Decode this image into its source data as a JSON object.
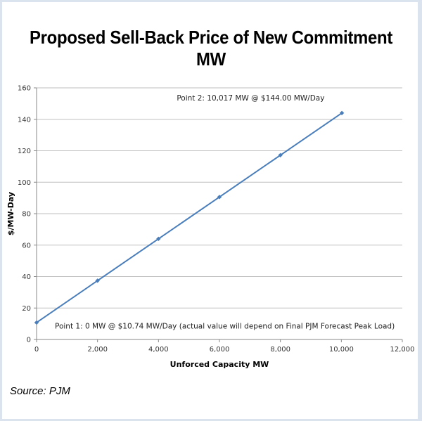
{
  "chart_data": {
    "type": "line",
    "title": "Proposed Sell-Back Price of New Commitment MW",
    "xlabel": "Unforced Capacity MW",
    "ylabel": "$/MW-Day",
    "xlim": [
      0,
      12000
    ],
    "ylim": [
      0,
      160
    ],
    "x_ticks": [
      0,
      2000,
      4000,
      6000,
      8000,
      10000,
      12000
    ],
    "x_tick_labels": [
      "0",
      "2,000",
      "4,000",
      "6,000",
      "8,000",
      "10,000",
      "12,000"
    ],
    "y_ticks": [
      0,
      20,
      40,
      60,
      80,
      100,
      120,
      140,
      160
    ],
    "y_tick_labels": [
      "0",
      "20",
      "40",
      "60",
      "80",
      "100",
      "120",
      "140",
      "160"
    ],
    "grid": "horizontal",
    "series": [
      {
        "name": "Sell-Back Price",
        "color": "#4a7ebb",
        "x": [
          0,
          2000,
          4000,
          6000,
          8000,
          10017
        ],
        "y": [
          10.74,
          37.4,
          64.0,
          90.6,
          117.2,
          144.0
        ]
      }
    ],
    "annotations": [
      {
        "text": "Point 2: 10,017 MW @ $144.00 MW/Day",
        "x": 4600,
        "y": 152
      },
      {
        "text": "Point 1: 0 MW @ $10.74 MW/Day (actual value will depend on Final PJM Forecast Peak Load)",
        "x": 600,
        "y": 7
      }
    ]
  },
  "source": "Source: PJM"
}
